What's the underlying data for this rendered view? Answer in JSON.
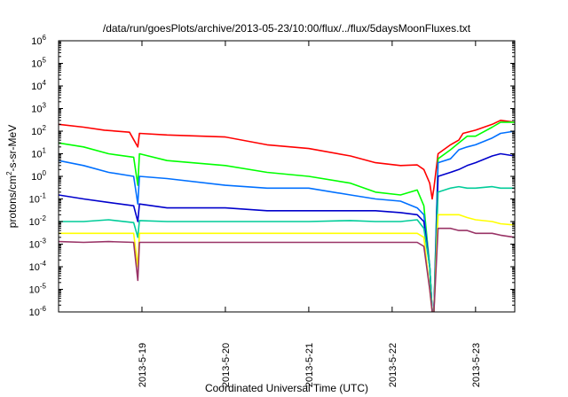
{
  "chart_data": {
    "type": "line",
    "title": "/data/run/goesPlots/archive/2013-05-23/10:00/flux/../flux/5daysMoonFluxes.txt",
    "xlabel": "Coordinated Universal Time (UTC)",
    "ylabel": {
      "base": "protons/cm",
      "sup": "2",
      "rest": "-s-sr-MeV"
    },
    "y_scale": "log",
    "ylim": [
      1e-06,
      1000000.0
    ],
    "y_ticks": [
      {
        "value": 1e-06,
        "mant": "10",
        "exp": "-6"
      },
      {
        "value": 1e-05,
        "mant": "10",
        "exp": "-5"
      },
      {
        "value": 0.0001,
        "mant": "10",
        "exp": "-4"
      },
      {
        "value": 0.001,
        "mant": "10",
        "exp": "-3"
      },
      {
        "value": 0.01,
        "mant": "10",
        "exp": "-2"
      },
      {
        "value": 0.1,
        "mant": "10",
        "exp": "-1"
      },
      {
        "value": 1,
        "mant": "10",
        "exp": "0"
      },
      {
        "value": 10.0,
        "mant": "10",
        "exp": "1"
      },
      {
        "value": 100.0,
        "mant": "10",
        "exp": "2"
      },
      {
        "value": 1000.0,
        "mant": "10",
        "exp": "3"
      },
      {
        "value": 10000.0,
        "mant": "10",
        "exp": "4"
      },
      {
        "value": 100000.0,
        "mant": "10",
        "exp": "5"
      },
      {
        "value": 1000000.0,
        "mant": "10",
        "exp": "6"
      }
    ],
    "x_unit": "day",
    "xlim": [
      0,
      5.47
    ],
    "x_ticks": [
      {
        "value": 1,
        "label": "2013-5-19"
      },
      {
        "value": 2,
        "label": "2013-5-20"
      },
      {
        "value": 3,
        "label": "2013-5-21"
      },
      {
        "value": 4,
        "label": "2013-5-22"
      },
      {
        "value": 5,
        "label": "2013-5-23"
      }
    ],
    "grid": false,
    "legend": "none",
    "series": [
      {
        "color": "#ff0000",
        "points": [
          [
            0,
            200
          ],
          [
            0.3,
            150
          ],
          [
            0.55,
            110
          ],
          [
            0.85,
            90
          ],
          [
            0.95,
            20
          ],
          [
            0.97,
            80
          ],
          [
            1.3,
            68
          ],
          [
            2,
            55
          ],
          [
            2.5,
            25
          ],
          [
            3,
            17
          ],
          [
            3.5,
            8
          ],
          [
            3.8,
            4
          ],
          [
            4.1,
            3
          ],
          [
            4.3,
            3.2
          ],
          [
            4.38,
            2
          ],
          [
            4.45,
            0.5
          ],
          [
            4.48,
            0.1
          ],
          [
            4.5,
            0.3
          ],
          [
            4.55,
            10
          ],
          [
            4.7,
            25
          ],
          [
            4.8,
            40
          ],
          [
            4.85,
            80
          ],
          [
            5,
            110
          ],
          [
            5.2,
            200
          ],
          [
            5.3,
            300
          ],
          [
            5.47,
            250
          ]
        ]
      },
      {
        "color": "#00ff00",
        "points": [
          [
            0,
            30
          ],
          [
            0.3,
            20
          ],
          [
            0.6,
            10
          ],
          [
            0.9,
            7
          ],
          [
            0.95,
            0.4
          ],
          [
            0.97,
            10
          ],
          [
            1.3,
            5
          ],
          [
            2,
            3
          ],
          [
            2.5,
            1.5
          ],
          [
            3,
            1
          ],
          [
            3.5,
            0.5
          ],
          [
            3.8,
            0.2
          ],
          [
            4.1,
            0.15
          ],
          [
            4.3,
            0.25
          ],
          [
            4.38,
            0.05
          ],
          [
            4.45,
            0.0001
          ],
          [
            4.48,
            1e-06
          ],
          [
            4.5,
            1e-06
          ],
          [
            4.55,
            6
          ],
          [
            4.7,
            15
          ],
          [
            4.8,
            30
          ],
          [
            4.9,
            60
          ],
          [
            5,
            60
          ],
          [
            5.2,
            150
          ],
          [
            5.3,
            250
          ],
          [
            5.47,
            250
          ]
        ]
      },
      {
        "color": "#0070ff",
        "points": [
          [
            0,
            5
          ],
          [
            0.3,
            3
          ],
          [
            0.6,
            1.5
          ],
          [
            0.9,
            1
          ],
          [
            0.95,
            0.06
          ],
          [
            0.97,
            1
          ],
          [
            1.3,
            0.8
          ],
          [
            2,
            0.4
          ],
          [
            2.5,
            0.3
          ],
          [
            3,
            0.3
          ],
          [
            3.5,
            0.15
          ],
          [
            3.8,
            0.1
          ],
          [
            4.1,
            0.08
          ],
          [
            4.3,
            0.04
          ],
          [
            4.38,
            0.02
          ],
          [
            4.45,
            0.0001
          ],
          [
            4.48,
            1e-06
          ],
          [
            4.5,
            1e-06
          ],
          [
            4.55,
            4
          ],
          [
            4.7,
            6
          ],
          [
            4.8,
            15
          ],
          [
            4.9,
            20
          ],
          [
            5,
            25
          ],
          [
            5.2,
            50
          ],
          [
            5.3,
            80
          ],
          [
            5.47,
            100
          ]
        ]
      },
      {
        "color": "#0000cc",
        "points": [
          [
            0,
            0.15
          ],
          [
            0.3,
            0.1
          ],
          [
            0.6,
            0.07
          ],
          [
            0.9,
            0.05
          ],
          [
            0.95,
            0.01
          ],
          [
            0.97,
            0.06
          ],
          [
            1.3,
            0.04
          ],
          [
            2,
            0.04
          ],
          [
            2.5,
            0.03
          ],
          [
            3,
            0.03
          ],
          [
            3.5,
            0.03
          ],
          [
            3.8,
            0.03
          ],
          [
            4.1,
            0.025
          ],
          [
            4.3,
            0.02
          ],
          [
            4.38,
            0.01
          ],
          [
            4.45,
            0.0001
          ],
          [
            4.48,
            1e-06
          ],
          [
            4.5,
            1e-06
          ],
          [
            4.55,
            1
          ],
          [
            4.7,
            1.5
          ],
          [
            4.8,
            2
          ],
          [
            4.9,
            3
          ],
          [
            5,
            4
          ],
          [
            5.2,
            8
          ],
          [
            5.3,
            10
          ],
          [
            5.47,
            8
          ]
        ]
      },
      {
        "color": "#00cc99",
        "points": [
          [
            0,
            0.01
          ],
          [
            0.3,
            0.01
          ],
          [
            0.6,
            0.012
          ],
          [
            0.9,
            0.009
          ],
          [
            0.95,
            0.002
          ],
          [
            0.97,
            0.011
          ],
          [
            1.3,
            0.01
          ],
          [
            2,
            0.01
          ],
          [
            2.5,
            0.01
          ],
          [
            3,
            0.01
          ],
          [
            3.5,
            0.011
          ],
          [
            3.8,
            0.01
          ],
          [
            4.1,
            0.01
          ],
          [
            4.3,
            0.012
          ],
          [
            4.38,
            0.005
          ],
          [
            4.45,
            0.0001
          ],
          [
            4.48,
            1e-06
          ],
          [
            4.5,
            1e-06
          ],
          [
            4.55,
            0.2
          ],
          [
            4.7,
            0.3
          ],
          [
            4.8,
            0.35
          ],
          [
            4.9,
            0.3
          ],
          [
            5,
            0.3
          ],
          [
            5.2,
            0.35
          ],
          [
            5.3,
            0.3
          ],
          [
            5.47,
            0.3
          ]
        ]
      },
      {
        "color": "#ffff00",
        "points": [
          [
            0,
            0.003
          ],
          [
            0.3,
            0.003
          ],
          [
            0.6,
            0.003
          ],
          [
            0.9,
            0.003
          ],
          [
            0.95,
            0.0001
          ],
          [
            0.97,
            0.003
          ],
          [
            1.3,
            0.003
          ],
          [
            2,
            0.003
          ],
          [
            2.5,
            0.003
          ],
          [
            3,
            0.003
          ],
          [
            3.5,
            0.003
          ],
          [
            3.8,
            0.003
          ],
          [
            4.1,
            0.003
          ],
          [
            4.3,
            0.003
          ],
          [
            4.38,
            0.002
          ],
          [
            4.45,
            1e-05
          ],
          [
            4.48,
            1e-06
          ],
          [
            4.5,
            1e-06
          ],
          [
            4.55,
            0.02
          ],
          [
            4.7,
            0.02
          ],
          [
            4.8,
            0.02
          ],
          [
            4.9,
            0.015
          ],
          [
            5,
            0.012
          ],
          [
            5.2,
            0.01
          ],
          [
            5.3,
            0.008
          ],
          [
            5.47,
            0.007
          ]
        ]
      },
      {
        "color": "#993366",
        "points": [
          [
            0,
            0.0013
          ],
          [
            0.3,
            0.0012
          ],
          [
            0.6,
            0.0013
          ],
          [
            0.9,
            0.0012
          ],
          [
            0.95,
            2.5e-05
          ],
          [
            0.97,
            0.0012
          ],
          [
            1.3,
            0.0012
          ],
          [
            2,
            0.0012
          ],
          [
            2.5,
            0.0012
          ],
          [
            3,
            0.0012
          ],
          [
            3.5,
            0.0012
          ],
          [
            3.8,
            0.0012
          ],
          [
            4.1,
            0.0012
          ],
          [
            4.3,
            0.0012
          ],
          [
            4.38,
            0.0008
          ],
          [
            4.45,
            1e-05
          ],
          [
            4.48,
            1e-06
          ],
          [
            4.5,
            1e-06
          ],
          [
            4.55,
            0.005
          ],
          [
            4.7,
            0.005
          ],
          [
            4.8,
            0.004
          ],
          [
            4.9,
            0.004
          ],
          [
            5,
            0.003
          ],
          [
            5.2,
            0.003
          ],
          [
            5.3,
            0.0025
          ],
          [
            5.47,
            0.002
          ]
        ]
      }
    ]
  }
}
